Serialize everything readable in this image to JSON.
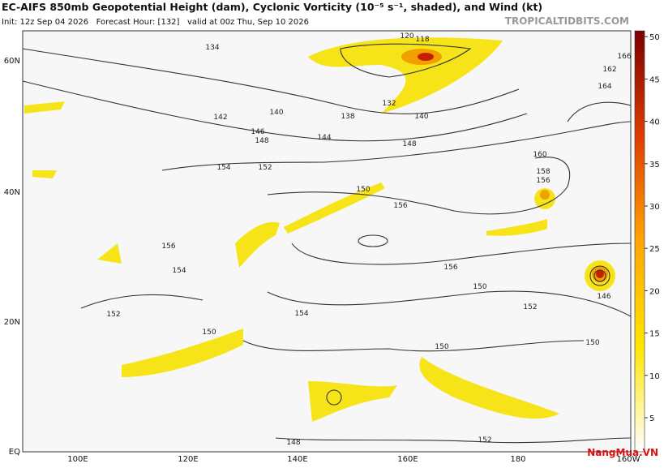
{
  "header": {
    "title": "EC-AIFS 850mb Geopotential Height (dam), Cyclonic Vorticity (10⁻⁵ s⁻¹, shaded), and Wind (kt)",
    "subtitle": "Init: 12z Sep 04 2026   Forecast Hour: [132]   valid at 00z Thu, Sep 10 2026",
    "site": "TROPICALTIDBITS.COM"
  },
  "map": {
    "lat_labels": [
      "60N",
      "40N",
      "20N",
      "EQ"
    ],
    "lon_labels": [
      "100E",
      "120E",
      "140E",
      "160E",
      "180",
      "160W"
    ],
    "contour_labels": [
      "134",
      "142",
      "146",
      "148",
      "154",
      "152",
      "140",
      "138",
      "144",
      "148",
      "150",
      "156",
      "156",
      "154",
      "152",
      "154",
      "156",
      "150",
      "152",
      "150",
      "150",
      "160",
      "158",
      "156",
      "164",
      "162",
      "166",
      "146",
      "140",
      "132",
      "120",
      "118",
      "148",
      "152",
      "150"
    ]
  },
  "colorbar": {
    "ticks": [
      5,
      10,
      15,
      20,
      25,
      30,
      35,
      40,
      45,
      50
    ]
  },
  "watermark": "NangMua.VN"
}
